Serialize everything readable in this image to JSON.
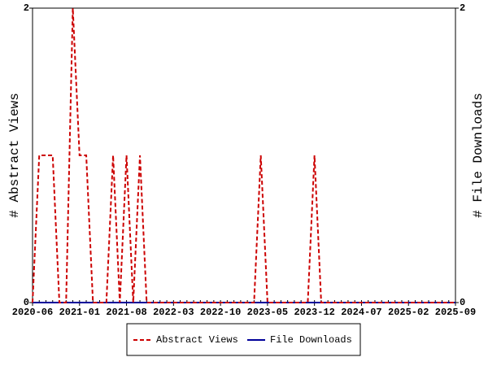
{
  "chart_data": {
    "type": "line",
    "ylabel": "# Abstract Views",
    "y2label": "# File Downloads",
    "x": [
      "2020-06",
      "2020-07",
      "2020-08",
      "2020-09",
      "2020-10",
      "2020-11",
      "2020-12",
      "2021-01",
      "2021-02",
      "2021-03",
      "2021-04",
      "2021-05",
      "2021-06",
      "2021-07",
      "2021-08",
      "2021-09",
      "2021-10",
      "2021-11",
      "2021-12",
      "2022-01",
      "2022-02",
      "2022-03",
      "2022-04",
      "2022-05",
      "2022-06",
      "2022-07",
      "2022-08",
      "2022-09",
      "2022-10",
      "2022-11",
      "2022-12",
      "2023-01",
      "2023-02",
      "2023-03",
      "2023-04",
      "2023-05",
      "2023-06",
      "2023-07",
      "2023-08",
      "2023-09",
      "2023-10",
      "2023-11",
      "2023-12",
      "2024-01",
      "2024-02",
      "2024-03",
      "2024-04",
      "2024-05",
      "2024-06",
      "2024-07",
      "2024-08",
      "2024-09",
      "2024-10",
      "2024-11",
      "2024-12",
      "2025-01",
      "2025-02",
      "2025-03",
      "2025-04",
      "2025-05",
      "2025-06",
      "2025-07",
      "2025-08",
      "2025-09"
    ],
    "xticks": [
      "2020-06",
      "2021-01",
      "2021-08",
      "2022-03",
      "2022-10",
      "2023-05",
      "2023-12",
      "2024-07",
      "2025-02",
      "2025-09"
    ],
    "series": [
      {
        "name": "Abstract Views",
        "color": "#cc0000",
        "dashed": true,
        "values": [
          0,
          1,
          1,
          1,
          0,
          0,
          2,
          1,
          1,
          0,
          0,
          0,
          1,
          0,
          1,
          0,
          1,
          0,
          0,
          0,
          0,
          0,
          0,
          0,
          0,
          0,
          0,
          0,
          0,
          0,
          0,
          0,
          0,
          0,
          1,
          0,
          0,
          0,
          0,
          0,
          0,
          0,
          1,
          0,
          0,
          0,
          0,
          0,
          0,
          0,
          0,
          0,
          0,
          0,
          0,
          0,
          0,
          0,
          0,
          0,
          0,
          0,
          0,
          0
        ]
      },
      {
        "name": "File Downloads",
        "color": "#000099",
        "dashed": false,
        "axis": "y2",
        "values": [
          0,
          0,
          0,
          0,
          0,
          0,
          0,
          0,
          0,
          0,
          0,
          0,
          0,
          0,
          0,
          0,
          0,
          0,
          0,
          0,
          0,
          0,
          0,
          0,
          0,
          0,
          0,
          0,
          0,
          0,
          0,
          0,
          0,
          0,
          0,
          0,
          0,
          0,
          0,
          0,
          0,
          0,
          0,
          0,
          0,
          0,
          0,
          0,
          0,
          0,
          0,
          0,
          0,
          0,
          0,
          0,
          0,
          0,
          0,
          0,
          0,
          0,
          0,
          0
        ]
      }
    ],
    "ylim": [
      0,
      2
    ],
    "yticks": [
      0,
      2
    ],
    "y2lim": [
      0,
      2
    ],
    "y2ticks": [
      0,
      2
    ]
  }
}
